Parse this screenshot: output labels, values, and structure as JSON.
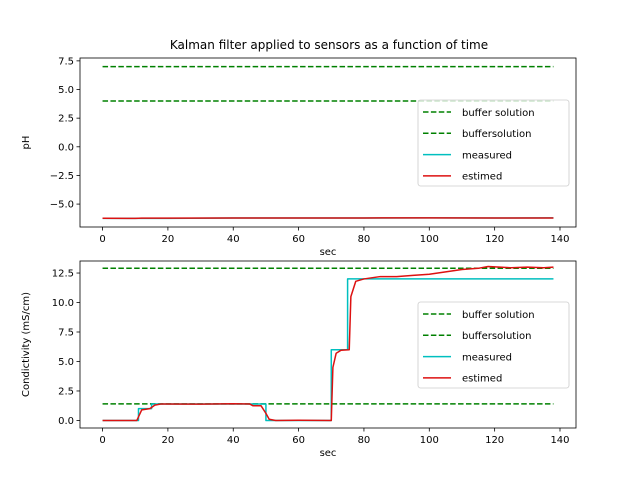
{
  "figure": {
    "title": "Kalman filter applied to sensors as a function of time"
  },
  "chart_data": [
    {
      "type": "line",
      "title": "Kalman filter applied to sensors as a function of time",
      "xlabel": "sec",
      "ylabel": "pH",
      "xlim": [
        -6.9,
        144.9
      ],
      "ylim": [
        -7.0,
        7.75
      ],
      "xticks": [
        0,
        20,
        40,
        60,
        80,
        100,
        120,
        140
      ],
      "xtick_labels": [
        "0",
        "20",
        "40",
        "60",
        "80",
        "100",
        "120",
        "140"
      ],
      "yticks": [
        -5.0,
        -2.5,
        0.0,
        2.5,
        5.0,
        7.5
      ],
      "ytick_labels": [
        "−5.0",
        "−2.5",
        "0.0",
        "2.5",
        "5.0",
        "7.5"
      ],
      "legend_position": "center-right",
      "grid": false,
      "series": [
        {
          "name": "buffer solution",
          "style": "dashed",
          "color": "#008000",
          "x": [
            0,
            138
          ],
          "y": [
            7.0,
            7.0
          ]
        },
        {
          "name": "buffersolution",
          "style": "dashed",
          "color": "#008000",
          "x": [
            0,
            138
          ],
          "y": [
            4.0,
            4.0
          ]
        },
        {
          "name": "measured",
          "style": "solid",
          "color": "#00bfbf",
          "x": [
            0,
            20,
            40,
            60,
            80,
            100,
            120,
            138
          ],
          "y": [
            -6.25,
            -6.25,
            -6.22,
            -6.22,
            -6.22,
            -6.2,
            -6.22,
            -6.2
          ]
        },
        {
          "name": "estimed",
          "style": "solid",
          "color": "#dd1111",
          "x": [
            0,
            10,
            12,
            20,
            40,
            60,
            80,
            100,
            120,
            138
          ],
          "y": [
            -6.24,
            -6.25,
            -6.23,
            -6.23,
            -6.22,
            -6.22,
            -6.21,
            -6.2,
            -6.21,
            -6.22
          ]
        }
      ]
    },
    {
      "type": "line",
      "xlabel": "sec",
      "ylabel": "Condictivity (mS/cm)",
      "xlim": [
        -6.9,
        144.9
      ],
      "ylim": [
        -0.64,
        13.52
      ],
      "xticks": [
        0,
        20,
        40,
        60,
        80,
        100,
        120,
        140
      ],
      "xtick_labels": [
        "0",
        "20",
        "40",
        "60",
        "80",
        "100",
        "120",
        "140"
      ],
      "yticks": [
        0.0,
        2.5,
        5.0,
        7.5,
        10.0,
        12.5
      ],
      "ytick_labels": [
        "0.0",
        "2.5",
        "5.0",
        "7.5",
        "10.0",
        "12.5"
      ],
      "legend_position": "center-right",
      "grid": false,
      "series": [
        {
          "name": "buffer solution",
          "style": "dashed",
          "color": "#008000",
          "x": [
            0,
            138
          ],
          "y": [
            12.9,
            12.9
          ]
        },
        {
          "name": "buffersolution",
          "style": "dashed",
          "color": "#008000",
          "x": [
            0,
            138
          ],
          "y": [
            1.41,
            1.41
          ]
        },
        {
          "name": "measured",
          "style": "solid",
          "color": "#00bfbf",
          "x": [
            0,
            11,
            11,
            15,
            15,
            50,
            50,
            70,
            70,
            75,
            75,
            138
          ],
          "y": [
            0.0,
            0.0,
            1.0,
            1.0,
            1.4,
            1.4,
            0.0,
            0.0,
            6.0,
            6.0,
            12.0,
            12.0
          ]
        },
        {
          "name": "estimed",
          "style": "solid",
          "color": "#dd1111",
          "x": [
            0,
            10.5,
            12,
            14.5,
            16,
            18,
            30,
            40,
            45,
            46,
            48.5,
            50,
            51,
            53,
            60,
            70,
            70.5,
            71.5,
            73,
            75.5,
            76,
            77.5,
            80,
            85,
            90,
            95,
            100,
            105,
            110,
            115,
            118,
            125,
            130,
            135,
            138
          ],
          "y": [
            0.0,
            0.0,
            0.9,
            1.0,
            1.3,
            1.4,
            1.38,
            1.42,
            1.4,
            1.25,
            1.25,
            0.6,
            0.1,
            0.0,
            0.02,
            0.0,
            4.5,
            5.7,
            5.95,
            6.0,
            10.5,
            11.8,
            12.0,
            12.2,
            12.2,
            12.3,
            12.4,
            12.6,
            12.8,
            12.9,
            13.05,
            12.95,
            13.0,
            12.95,
            13.0
          ]
        }
      ]
    }
  ]
}
